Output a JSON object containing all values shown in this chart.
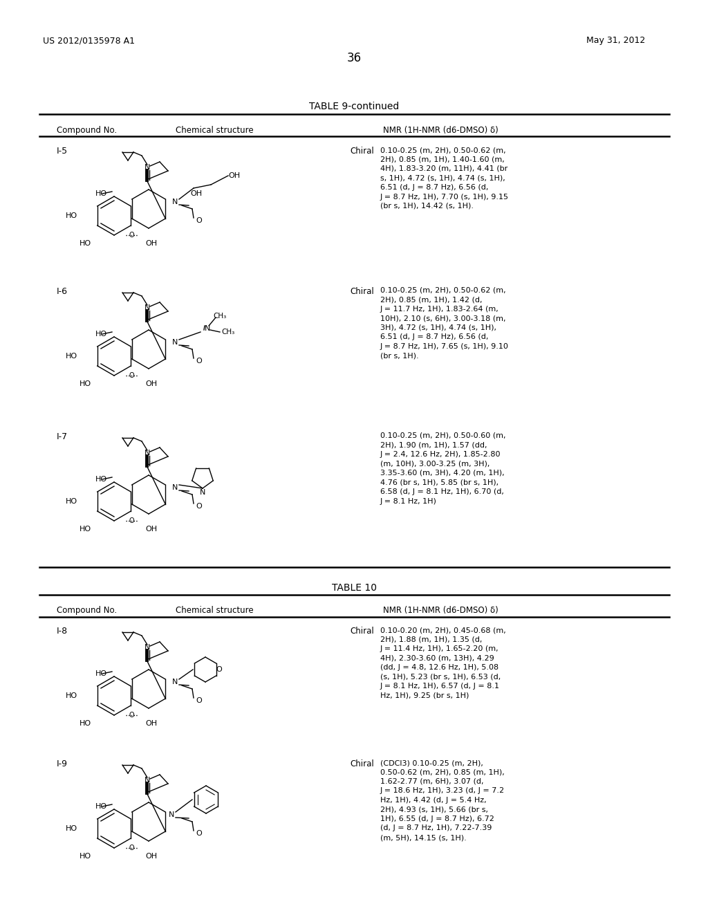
{
  "page_number": "36",
  "patent_number": "US 2012/0135978 A1",
  "patent_date": "May 31, 2012",
  "background_color": "#ffffff",
  "table9_title": "TABLE 9-continued",
  "table10_title": "TABLE 10",
  "col_headers": [
    "Compound No.",
    "Chemical structure",
    "NMR (1H-NMR (d6-DMSO) δ)"
  ],
  "nmr_i5": [
    "0.10-0.25 (m, 2H), 0.50-0.62 (m,",
    "2H), 0.85 (m, 1H), 1.40-1.60 (m,",
    "4H), 1.83-3.20 (m, 11H), 4.41 (br",
    "s, 1H), 4.72 (s, 1H), 4.74 (s, 1H),",
    "6.51 (d, J = 8.7 Hz), 6.56 (d,",
    "J = 8.7 Hz, 1H), 7.70 (s, 1H), 9.15",
    "(br s, 1H), 14.42 (s, 1H)."
  ],
  "nmr_i6": [
    "0.10-0.25 (m, 2H), 0.50-0.62 (m,",
    "2H), 0.85 (m, 1H), 1.42 (d,",
    "J = 11.7 Hz, 1H), 1.83-2.64 (m,",
    "10H), 2.10 (s, 6H), 3.00-3.18 (m,",
    "3H), 4.72 (s, 1H), 4.74 (s, 1H),",
    "6.51 (d, J = 8.7 Hz), 6.56 (d,",
    "J = 8.7 Hz, 1H), 7.65 (s, 1H), 9.10",
    "(br s, 1H)."
  ],
  "nmr_i7": [
    "0.10-0.25 (m, 2H), 0.50-0.60 (m,",
    "2H), 1.90 (m, 1H), 1.57 (dd,",
    "J = 2.4, 12.6 Hz, 2H), 1.85-2.80",
    "(m, 10H), 3.00-3.25 (m, 3H),",
    "3.35-3.60 (m, 3H), 4.20 (m, 1H),",
    "4.76 (br s, 1H), 5.85 (br s, 1H),",
    "6.58 (d, J = 8.1 Hz, 1H), 6.70 (d,",
    "J = 8.1 Hz, 1H)"
  ],
  "nmr_i8": [
    "0.10-0.20 (m, 2H), 0.45-0.68 (m,",
    "2H), 1.88 (m, 1H), 1.35 (d,",
    "J = 11.4 Hz, 1H), 1.65-2.20 (m,",
    "4H), 2.30-3.60 (m, 13H), 4.29",
    "(dd, J = 4.8, 12.6 Hz, 1H), 5.08",
    "(s, 1H), 5.23 (br s, 1H), 6.53 (d,",
    "J = 8.1 Hz, 1H), 6.57 (d, J = 8.1",
    "Hz, 1H), 9.25 (br s, 1H)"
  ],
  "nmr_i9": [
    "(CDCl3) 0.10-0.25 (m, 2H),",
    "0.50-0.62 (m, 2H), 0.85 (m, 1H),",
    "1.62-2.77 (m, 6H), 3.07 (d,",
    "J = 18.6 Hz, 1H), 3.23 (d, J = 7.2",
    "Hz, 1H), 4.42 (d, J = 5.4 Hz,",
    "2H), 4.93 (s, 1H), 5.66 (br s,",
    "1H), 6.55 (d, J = 8.7 Hz), 6.72",
    "(d, J = 8.7 Hz, 1H), 7.22-7.39",
    "(m, 5H), 14.15 (s, 1H)."
  ]
}
